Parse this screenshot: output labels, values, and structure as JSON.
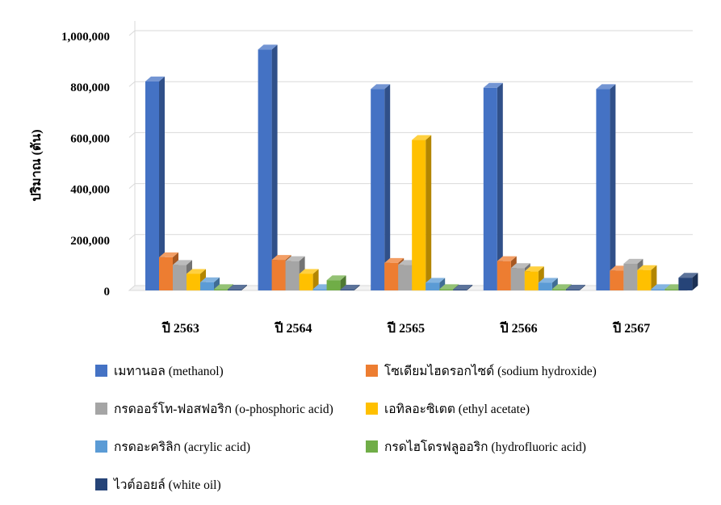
{
  "chart_data": {
    "type": "bar",
    "title": "",
    "xlabel": "",
    "ylabel": "ปริมาณ (ตัน)",
    "ylim": [
      0,
      1000000
    ],
    "yticks": [
      0,
      200000,
      400000,
      600000,
      800000,
      1000000
    ],
    "ytick_labels": [
      "0",
      "200,000",
      "400,000",
      "600,000",
      "800,000",
      "1,000,000"
    ],
    "grid": true,
    "legend_position": "bottom",
    "categories": [
      "ปี 2563",
      "ปี 2564",
      "ปี 2565",
      "ปี 2566",
      "ปี 2567"
    ],
    "series": [
      {
        "name": "เมทานอล (methanol)",
        "color": "#4472C4",
        "values": [
          820000,
          945000,
          790000,
          795000,
          790000
        ]
      },
      {
        "name": "โซเดียมไฮดรอกไซด์ (sodium hydroxide)",
        "color": "#ED7D31",
        "values": [
          130000,
          120000,
          108000,
          115000,
          78000
        ]
      },
      {
        "name": "กรดออร์โท-ฟอสฟอริก (o-phosphoric acid)",
        "color": "#A5A5A5",
        "values": [
          100000,
          115000,
          100000,
          88000,
          105000
        ]
      },
      {
        "name": "เอทิลอะซิเตต (ethyl acetate)",
        "color": "#FFC000",
        "values": [
          65000,
          65000,
          590000,
          75000,
          80000
        ]
      },
      {
        "name": "กรดอะคริลิก (acrylic acid)",
        "color": "#5B9BD5",
        "values": [
          32000,
          5000,
          30000,
          30000,
          5000
        ]
      },
      {
        "name": "กรดไฮโดรฟลูออริก (hydrofluoric acid)",
        "color": "#70AD47",
        "values": [
          5000,
          40000,
          5000,
          5000,
          5000
        ]
      },
      {
        "name": "ไวต์ออยล์ (white oil)",
        "color": "#264478",
        "values": [
          3000,
          3000,
          3000,
          3000,
          50000
        ]
      }
    ]
  }
}
